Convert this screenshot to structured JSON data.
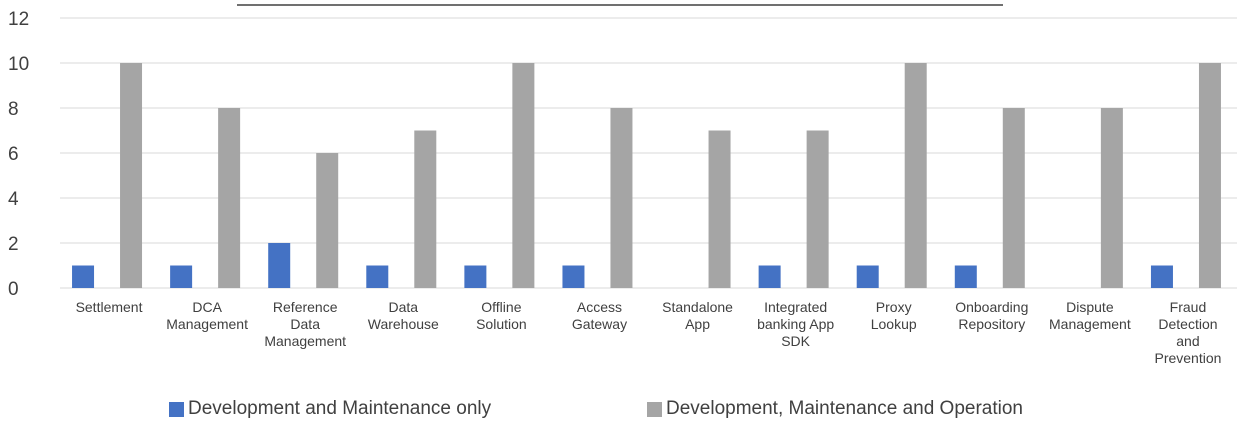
{
  "chart_data": {
    "type": "bar",
    "title": "",
    "xlabel": "",
    "ylabel": "",
    "ylim": [
      0,
      12
    ],
    "yticks": [
      "0",
      "2",
      "4",
      "6",
      "8",
      "10",
      "12"
    ],
    "grid": true,
    "legend_position": "bottom",
    "categories": [
      [
        "Settlement"
      ],
      [
        "DCA",
        "Management"
      ],
      [
        "Reference",
        "Data",
        "Management"
      ],
      [
        "Data",
        "Warehouse"
      ],
      [
        "Offline",
        "Solution"
      ],
      [
        "Access",
        "Gateway"
      ],
      [
        "Standalone",
        "App"
      ],
      [
        "Integrated",
        "banking App",
        "SDK"
      ],
      [
        "Proxy",
        "Lookup"
      ],
      [
        "Onboarding",
        "Repository"
      ],
      [
        "Dispute",
        "Management"
      ],
      [
        "Fraud",
        "Detection",
        "and",
        "Prevention"
      ]
    ],
    "series": [
      {
        "name": "Development and Maintenance only",
        "color": "#4472c4",
        "values": [
          1,
          1,
          2,
          1,
          1,
          1,
          0,
          1,
          1,
          1,
          0,
          1
        ]
      },
      {
        "name": "Development, Maintenance and Operation",
        "color": "#a5a5a5",
        "values": [
          10,
          8,
          6,
          7,
          10,
          8,
          7,
          7,
          10,
          8,
          8,
          10
        ]
      }
    ]
  }
}
